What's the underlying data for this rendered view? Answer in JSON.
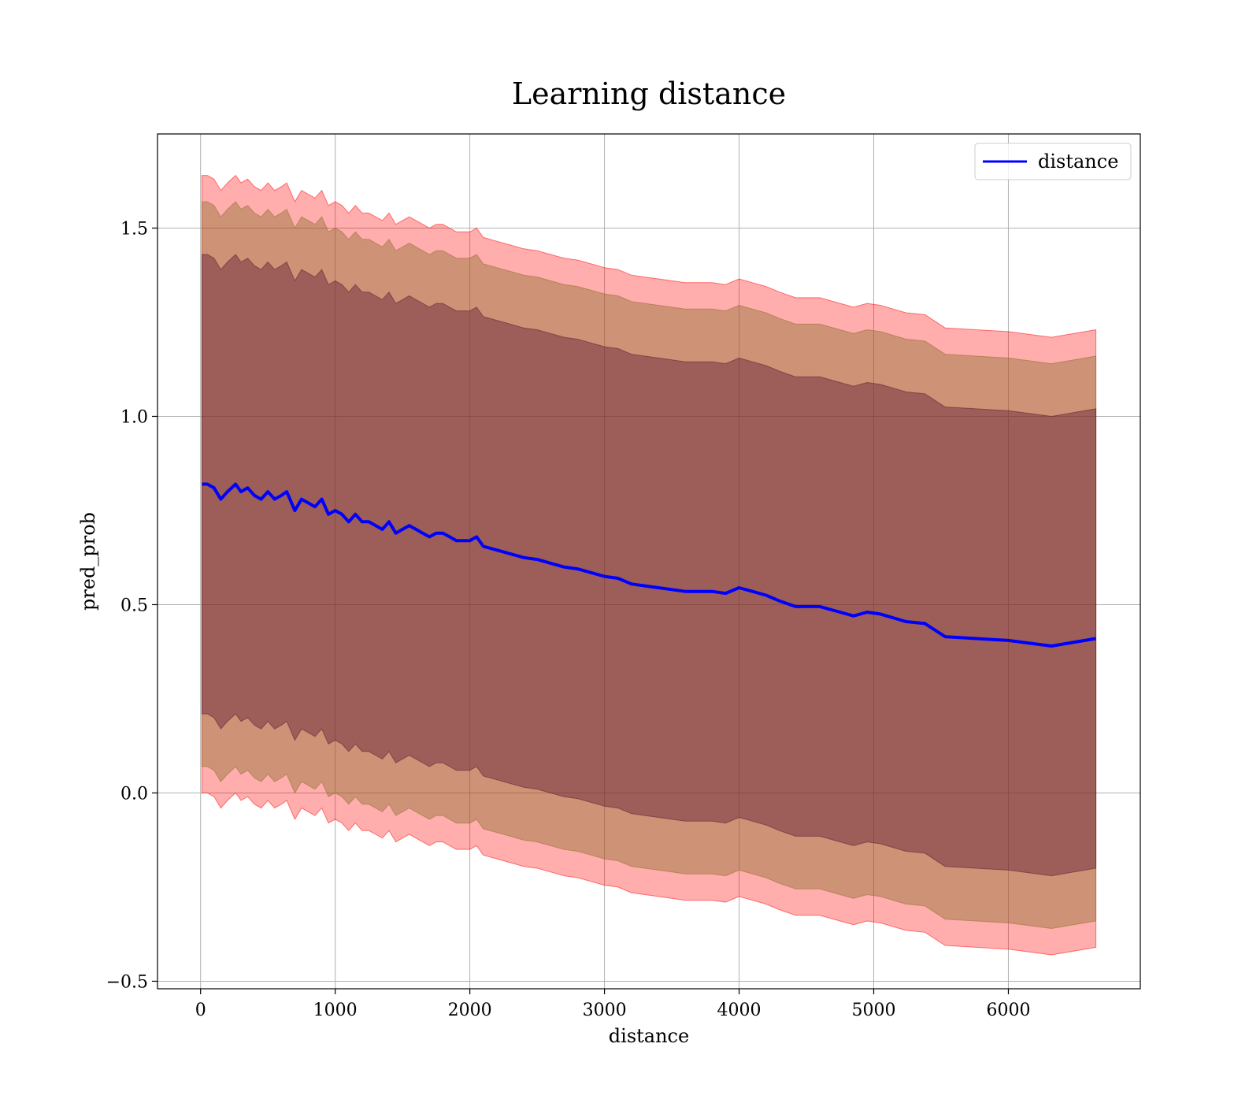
{
  "chart_data": {
    "type": "line",
    "title": "Learning distance",
    "xlabel": "distance",
    "ylabel": "pred_prob",
    "xlim": [
      -320,
      6980
    ],
    "ylim": [
      -0.52,
      1.75
    ],
    "xticks": [
      0,
      1000,
      2000,
      3000,
      4000,
      5000,
      6000
    ],
    "yticks": [
      -0.5,
      0.0,
      0.5,
      1.0,
      1.5
    ],
    "xtick_labels": [
      "0",
      "1000",
      "2000",
      "3000",
      "4000",
      "5000",
      "6000"
    ],
    "ytick_labels": [
      "−0.5",
      "0.0",
      "0.5",
      "1.0",
      "1.5"
    ],
    "grid": true,
    "legend_position": "top-right",
    "series": [
      {
        "name": "distance",
        "color": "#0000ff",
        "x": [
          10,
          50,
          100,
          150,
          200,
          260,
          300,
          350,
          400,
          450,
          500,
          550,
          600,
          640,
          700,
          750,
          800,
          850,
          900,
          950,
          1000,
          1050,
          1100,
          1150,
          1200,
          1250,
          1300,
          1350,
          1400,
          1450,
          1500,
          1550,
          1600,
          1650,
          1700,
          1750,
          1800,
          1850,
          1900,
          1950,
          2000,
          2050,
          2100,
          2200,
          2300,
          2400,
          2500,
          2600,
          2700,
          2800,
          2900,
          3000,
          3100,
          3200,
          3300,
          3400,
          3500,
          3600,
          3700,
          3800,
          3900,
          4000,
          4100,
          4200,
          4300,
          4420,
          4600,
          4750,
          4850,
          4950,
          5050,
          5240,
          5380,
          5530,
          6000,
          6320,
          6650
        ],
        "values": [
          0.82,
          0.82,
          0.81,
          0.78,
          0.8,
          0.82,
          0.8,
          0.81,
          0.79,
          0.78,
          0.8,
          0.78,
          0.79,
          0.8,
          0.75,
          0.78,
          0.77,
          0.76,
          0.78,
          0.74,
          0.75,
          0.74,
          0.72,
          0.74,
          0.72,
          0.72,
          0.71,
          0.7,
          0.72,
          0.69,
          0.7,
          0.71,
          0.7,
          0.69,
          0.68,
          0.69,
          0.69,
          0.68,
          0.67,
          0.67,
          0.67,
          0.68,
          0.655,
          0.645,
          0.635,
          0.625,
          0.62,
          0.61,
          0.6,
          0.595,
          0.585,
          0.575,
          0.57,
          0.555,
          0.55,
          0.545,
          0.54,
          0.535,
          0.535,
          0.535,
          0.53,
          0.545,
          0.535,
          0.525,
          0.51,
          0.495,
          0.495,
          0.48,
          0.47,
          0.48,
          0.475,
          0.455,
          0.45,
          0.415,
          0.405,
          0.39,
          0.41
        ]
      }
    ],
    "bands": [
      {
        "color": "#ff0000",
        "opacity": 0.32,
        "offset": 0.82
      },
      {
        "color": "#8b6d2a",
        "opacity": 0.42,
        "offset": 0.75
      },
      {
        "color": "#5a1530",
        "opacity": 0.42,
        "offset": 0.61
      }
    ]
  }
}
